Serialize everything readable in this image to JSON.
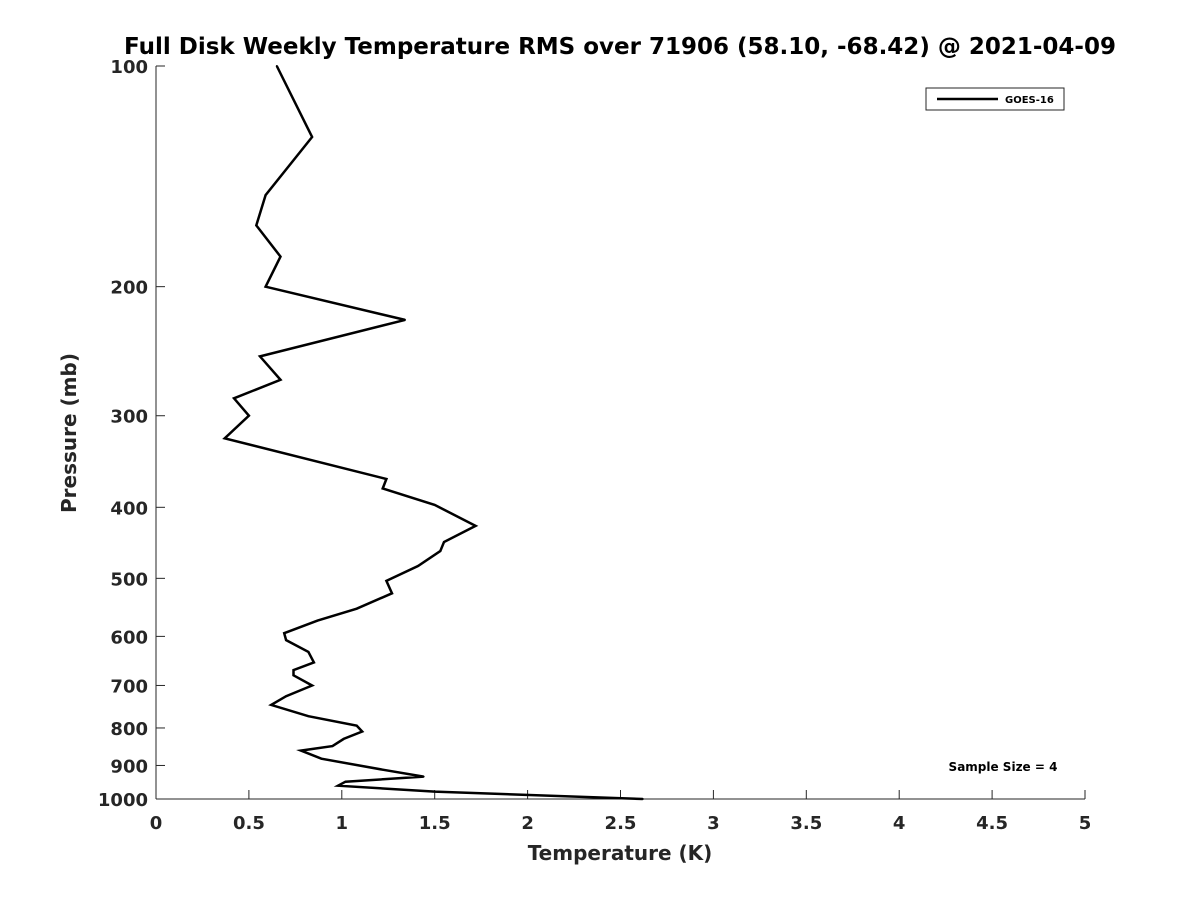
{
  "chart_data": {
    "type": "line",
    "title": "Full Disk Weekly Temperature RMS over 71906 (58.10, -68.42) @ 2021-04-09",
    "xlabel": "Temperature (K)",
    "ylabel": "Pressure (mb)",
    "xlim": [
      0,
      5
    ],
    "ylim": [
      100,
      1000
    ],
    "yscale": "log",
    "yreversed": true,
    "grid": false,
    "legend_position": "top-right",
    "xticks": [
      0,
      0.5,
      1,
      1.5,
      2,
      2.5,
      3,
      3.5,
      4,
      4.5,
      5
    ],
    "xtick_labels": [
      "0",
      "0.5",
      "1",
      "1.5",
      "2",
      "2.5",
      "3",
      "3.5",
      "4",
      "4.5",
      "5"
    ],
    "yticks": [
      100,
      200,
      300,
      400,
      500,
      600,
      700,
      800,
      900,
      1000
    ],
    "ytick_labels": [
      "100",
      "200",
      "300",
      "400",
      "500",
      "600",
      "700",
      "800",
      "900",
      "1000"
    ],
    "series": [
      {
        "name": "GOES-16",
        "color": "#000000",
        "x": [
          0.65,
          0.84,
          0.59,
          0.54,
          0.67,
          0.59,
          1.34,
          0.56,
          0.67,
          0.42,
          0.5,
          0.37,
          1.24,
          1.22,
          1.5,
          1.72,
          1.55,
          1.53,
          1.41,
          1.24,
          1.27,
          1.08,
          0.87,
          0.69,
          0.7,
          0.82,
          0.85,
          0.74,
          0.74,
          0.84,
          0.7,
          0.62,
          0.82,
          1.08,
          1.11,
          1.01,
          0.95,
          0.78,
          0.89,
          1.22,
          1.44,
          1.02,
          0.98,
          1.5,
          2.62
        ],
        "y": [
          100,
          125,
          150,
          165,
          182,
          200,
          222,
          249,
          268,
          284,
          300,
          322,
          366,
          377,
          397,
          424,
          446,
          459,
          481,
          504,
          524,
          550,
          571,
          594,
          607,
          630,
          651,
          667,
          678,
          700,
          724,
          744,
          771,
          794,
          809,
          828,
          847,
          859,
          881,
          912,
          932,
          947,
          959,
          977,
          1000
        ]
      }
    ],
    "annotations": [
      {
        "text": "Sample Size = 4",
        "position": "bottom-right"
      }
    ]
  }
}
